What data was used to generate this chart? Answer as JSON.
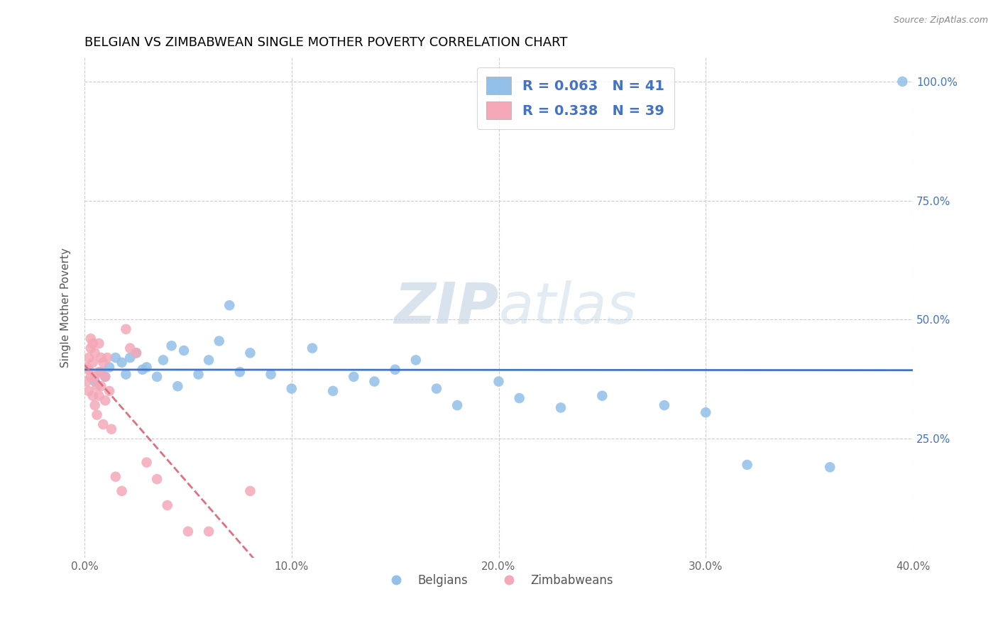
{
  "title": "BELGIAN VS ZIMBABWEAN SINGLE MOTHER POVERTY CORRELATION CHART",
  "source": "Source: ZipAtlas.com",
  "xlabel": "",
  "ylabel": "Single Mother Poverty",
  "xlim": [
    0.0,
    0.4
  ],
  "ylim": [
    0.0,
    1.05
  ],
  "xticks": [
    0.0,
    0.1,
    0.2,
    0.3,
    0.4
  ],
  "xtick_labels": [
    "0.0%",
    "10.0%",
    "20.0%",
    "30.0%",
    "40.0%"
  ],
  "yticks": [
    0.25,
    0.5,
    0.75,
    1.0
  ],
  "ytick_labels": [
    "25.0%",
    "50.0%",
    "75.0%",
    "100.0%"
  ],
  "belgian_color": "#92C0E8",
  "zimbabwean_color": "#F4A8B8",
  "belgian_line_color": "#4472C4",
  "zimbabwean_line_color": "#E07080",
  "legend_R1": "0.063",
  "legend_N1": "41",
  "legend_R2": "0.338",
  "legend_N2": "39",
  "watermark_zip": "ZIP",
  "watermark_atlas": "atlas",
  "belgians_x": [
    0.005,
    0.008,
    0.01,
    0.012,
    0.015,
    0.018,
    0.02,
    0.022,
    0.025,
    0.028,
    0.03,
    0.035,
    0.038,
    0.042,
    0.045,
    0.048,
    0.055,
    0.06,
    0.065,
    0.07,
    0.075,
    0.08,
    0.09,
    0.1,
    0.11,
    0.12,
    0.13,
    0.14,
    0.15,
    0.16,
    0.17,
    0.18,
    0.2,
    0.21,
    0.23,
    0.25,
    0.28,
    0.3,
    0.32,
    0.36,
    0.395
  ],
  "belgians_y": [
    0.37,
    0.39,
    0.38,
    0.4,
    0.42,
    0.41,
    0.385,
    0.42,
    0.43,
    0.395,
    0.4,
    0.38,
    0.415,
    0.445,
    0.36,
    0.435,
    0.385,
    0.415,
    0.455,
    0.53,
    0.39,
    0.43,
    0.385,
    0.355,
    0.44,
    0.35,
    0.38,
    0.37,
    0.395,
    0.415,
    0.355,
    0.32,
    0.37,
    0.335,
    0.315,
    0.34,
    0.32,
    0.305,
    0.195,
    0.19,
    1.0
  ],
  "zimbabweans_x": [
    0.001,
    0.001,
    0.002,
    0.002,
    0.002,
    0.003,
    0.003,
    0.003,
    0.004,
    0.004,
    0.004,
    0.005,
    0.005,
    0.005,
    0.006,
    0.006,
    0.007,
    0.007,
    0.007,
    0.008,
    0.008,
    0.009,
    0.009,
    0.01,
    0.01,
    0.011,
    0.012,
    0.013,
    0.015,
    0.018,
    0.02,
    0.022,
    0.025,
    0.03,
    0.035,
    0.04,
    0.05,
    0.06,
    0.08
  ],
  "zimbabweans_y": [
    0.4,
    0.37,
    0.42,
    0.395,
    0.35,
    0.44,
    0.46,
    0.38,
    0.45,
    0.41,
    0.34,
    0.38,
    0.43,
    0.32,
    0.36,
    0.3,
    0.45,
    0.39,
    0.34,
    0.42,
    0.36,
    0.41,
    0.28,
    0.38,
    0.33,
    0.42,
    0.35,
    0.27,
    0.17,
    0.14,
    0.48,
    0.44,
    0.43,
    0.2,
    0.165,
    0.11,
    0.055,
    0.055,
    0.14
  ],
  "background_color": "#FFFFFF",
  "grid_color": "#CCCCCC",
  "title_fontsize": 13,
  "axis_label_fontsize": 11,
  "tick_fontsize": 11,
  "legend_fontsize": 13
}
